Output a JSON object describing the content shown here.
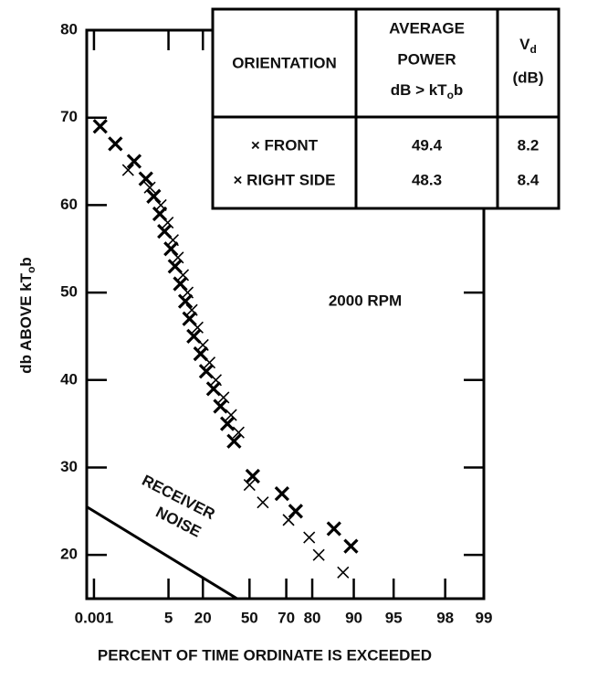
{
  "chart_data": {
    "type": "scatter",
    "annotation": "2000 RPM",
    "noise_label": [
      "RECEIVER",
      "NOISE"
    ],
    "x_label": "PERCENT OF TIME ORDINATE IS EXCEEDED",
    "y_label": [
      "db ABOVE kT",
      "o",
      "b"
    ],
    "xscale": "rayleigh",
    "xlim": [
      0.0002,
      99
    ],
    "xticks": [
      0.001,
      5,
      20,
      50,
      70,
      80,
      90,
      95,
      98,
      99
    ],
    "ylim": [
      15,
      80
    ],
    "yticks": [
      20,
      30,
      40,
      50,
      60,
      70,
      80
    ],
    "series": [
      {
        "name": "FRONT",
        "color": "#000000",
        "x": [
          0.0034,
          0.04,
          0.38,
          1.1,
          2.0,
          3.0,
          4.0,
          5.7,
          7,
          8.9,
          11,
          12.9,
          15,
          18.7,
          22,
          26.5,
          31,
          35.6,
          40,
          52,
          68,
          74,
          86,
          89.5
        ],
        "values": [
          69,
          67,
          65,
          63,
          61,
          59,
          57,
          55,
          53,
          51,
          49,
          47,
          45,
          43,
          41,
          39,
          37,
          35,
          33,
          29,
          27,
          25,
          23,
          21
        ]
      },
      {
        "name": "RIGHT SIDE",
        "color": "#000000",
        "x": [
          0.2,
          1.5,
          3.2,
          4.8,
          6.3,
          8,
          10,
          12,
          14,
          17,
          20,
          24,
          28,
          33,
          38,
          43,
          50,
          58,
          71,
          79,
          82,
          88
        ],
        "values": [
          64,
          62,
          60,
          58,
          56,
          54,
          52,
          50,
          48,
          46,
          44,
          42,
          40,
          38,
          36,
          34,
          28,
          26,
          24,
          22,
          20,
          18
        ]
      },
      {
        "name": "RECEIVER NOISE",
        "color": "#000000",
        "x": [
          0.0002,
          42
        ],
        "values": [
          25.5,
          15
        ]
      }
    ],
    "table": {
      "header": [
        [
          "ORIENTATION"
        ],
        [
          "AVERAGE",
          "POWER",
          "dB > kT",
          "o",
          "b"
        ],
        [
          "V",
          "d",
          "(dB)"
        ]
      ],
      "rows": [
        [
          "× FRONT",
          "49.4",
          "8.2"
        ],
        [
          "× RIGHT SIDE",
          "48.3",
          "8.4"
        ]
      ]
    }
  }
}
